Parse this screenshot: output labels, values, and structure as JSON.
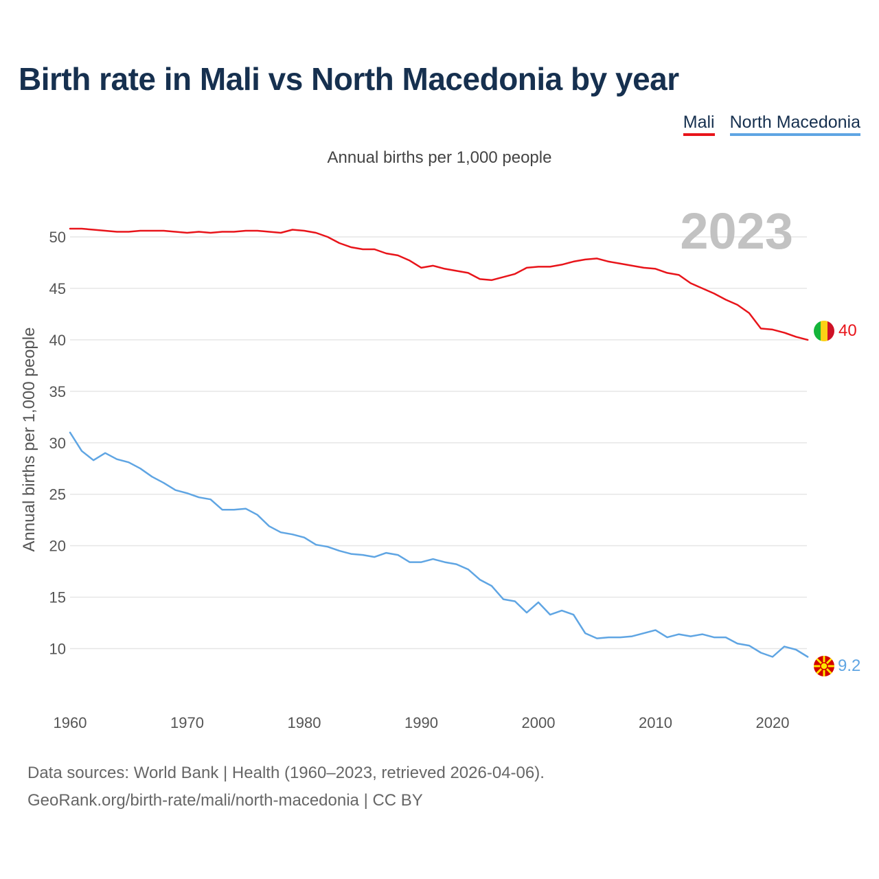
{
  "header": {
    "title": "Birth rate in Mali vs North Macedonia by year",
    "subtitle": "Annual births per 1,000 people"
  },
  "legend": [
    {
      "label": "Mali",
      "color": "#e8141a"
    },
    {
      "label": "North Macedonia",
      "color": "#5fa5e3"
    }
  ],
  "footer": {
    "line1": "Data sources: World Bank | Health (1960–2023, retrieved 2026-04-06).",
    "line2": "GeoRank.org/birth-rate/mali/north-macedonia | CC BY"
  },
  "chart_data": {
    "type": "line",
    "title": "Birth rate in Mali vs North Macedonia by year",
    "ylabel": "Annual births per 1,000 people",
    "xlabel": "",
    "year_label": "2023",
    "xlim": [
      1960,
      2023
    ],
    "ylim": [
      5.5,
      53
    ],
    "yticks": [
      10,
      15,
      20,
      25,
      30,
      35,
      40,
      45,
      50
    ],
    "xticks": [
      1960,
      1970,
      1980,
      1990,
      2000,
      2010,
      2020
    ],
    "grid": true,
    "legend_position": "top-right",
    "x": [
      1960,
      1961,
      1962,
      1963,
      1964,
      1965,
      1966,
      1967,
      1968,
      1969,
      1970,
      1971,
      1972,
      1973,
      1974,
      1975,
      1976,
      1977,
      1978,
      1979,
      1980,
      1981,
      1982,
      1983,
      1984,
      1985,
      1986,
      1987,
      1988,
      1989,
      1990,
      1991,
      1992,
      1993,
      1994,
      1995,
      1996,
      1997,
      1998,
      1999,
      2000,
      2001,
      2002,
      2003,
      2004,
      2005,
      2006,
      2007,
      2008,
      2009,
      2010,
      2011,
      2012,
      2013,
      2014,
      2015,
      2016,
      2017,
      2018,
      2019,
      2020,
      2021,
      2022,
      2023
    ],
    "series": [
      {
        "name": "Mali",
        "color": "#e8141a",
        "end_label": "40",
        "flag_icon": "mali-flag-icon",
        "values": [
          50.8,
          50.8,
          50.7,
          50.6,
          50.5,
          50.5,
          50.6,
          50.6,
          50.6,
          50.5,
          50.4,
          50.5,
          50.4,
          50.5,
          50.5,
          50.6,
          50.6,
          50.5,
          50.4,
          50.7,
          50.6,
          50.4,
          50.0,
          49.4,
          49.0,
          48.8,
          48.8,
          48.4,
          48.2,
          47.7,
          47.0,
          47.2,
          46.9,
          46.7,
          46.5,
          45.9,
          45.8,
          46.1,
          46.4,
          47.0,
          47.1,
          47.1,
          47.3,
          47.6,
          47.8,
          47.9,
          47.6,
          47.4,
          47.2,
          47.0,
          46.9,
          46.5,
          46.3,
          45.5,
          45.0,
          44.5,
          43.9,
          43.4,
          42.6,
          41.1,
          41.0,
          40.7,
          40.3,
          40.0
        ]
      },
      {
        "name": "North Macedonia",
        "color": "#5fa5e3",
        "end_label": "9.2",
        "flag_icon": "north-macedonia-flag-icon",
        "values": [
          31.0,
          29.2,
          28.3,
          29.0,
          28.4,
          28.1,
          27.5,
          26.7,
          26.1,
          25.4,
          25.1,
          24.7,
          24.5,
          23.5,
          23.5,
          23.6,
          23.0,
          21.9,
          21.3,
          21.1,
          20.8,
          20.1,
          19.9,
          19.5,
          19.2,
          19.1,
          18.9,
          19.3,
          19.1,
          18.4,
          18.4,
          18.7,
          18.4,
          18.2,
          17.7,
          16.7,
          16.1,
          14.8,
          14.6,
          13.5,
          14.5,
          13.3,
          13.7,
          13.3,
          11.5,
          11.0,
          11.1,
          11.1,
          11.2,
          11.5,
          11.8,
          11.1,
          11.4,
          11.2,
          11.4,
          11.1,
          11.1,
          10.5,
          10.3,
          9.6,
          9.2,
          10.2,
          9.9,
          9.2
        ]
      }
    ]
  }
}
